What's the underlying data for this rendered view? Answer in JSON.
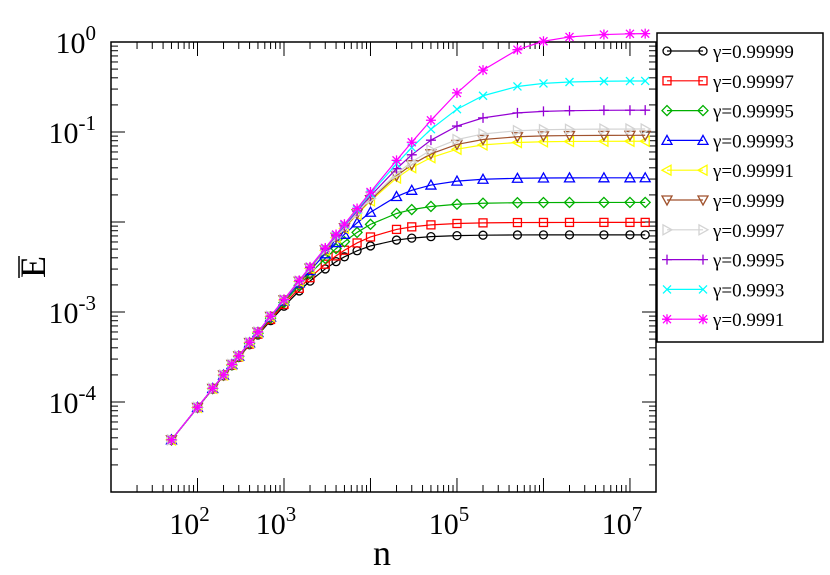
{
  "chart_data": {
    "type": "line",
    "title": "",
    "xlabel": "n",
    "ylabel": "E",
    "xscale": "log",
    "yscale": "log",
    "xlim": [
      10,
      20000000
    ],
    "ylim": [
      1e-05,
      1
    ],
    "grid": false,
    "legend_position": "right-outside",
    "x_ticks": [
      {
        "base": "10",
        "exp": "2"
      },
      {
        "base": "10",
        "exp": "3"
      },
      {
        "base": "10",
        "exp": "5"
      },
      {
        "base": "10",
        "exp": "7"
      }
    ],
    "y_ticks": [
      {
        "base": "10",
        "exp": "0"
      },
      {
        "base": "10",
        "exp": "-1"
      },
      {
        "base": "10",
        "exp": "-3"
      },
      {
        "base": "10",
        "exp": "-4"
      }
    ],
    "series": [
      {
        "name": "γ=0.99999",
        "color": "#000000",
        "marker": "circle",
        "plateau": 0.0072
      },
      {
        "name": "γ=0.99997",
        "color": "#ff0000",
        "marker": "square",
        "plateau": 0.0099
      },
      {
        "name": "γ=0.99995",
        "color": "#00b000",
        "marker": "diamond",
        "plateau": 0.0165
      },
      {
        "name": "γ=0.99993",
        "color": "#0000ff",
        "marker": "triangle-up",
        "plateau": 0.031
      },
      {
        "name": "γ=0.99991",
        "color": "#ffff00",
        "marker": "triangle-left",
        "plateau": 0.079
      },
      {
        "name": "γ=0.9999",
        "color": "#a0522d",
        "marker": "triangle-down",
        "plateau": 0.092
      },
      {
        "name": "γ=0.9997",
        "color": "#d3d3d3",
        "marker": "triangle-right",
        "plateau": 0.108
      },
      {
        "name": "γ=0.9995",
        "color": "#9400d3",
        "marker": "plus",
        "plateau": 0.175
      },
      {
        "name": "γ=0.9993",
        "color": "#00ffff",
        "marker": "x",
        "plateau": 0.37
      },
      {
        "name": "γ=0.9991",
        "color": "#ff00ff",
        "marker": "star",
        "plateau": 1.25
      }
    ],
    "x_points": [
      50,
      100,
      150,
      200,
      250,
      300,
      400,
      500,
      700,
      1000,
      1500,
      2000,
      3000,
      4000,
      5000,
      7000,
      10000,
      20000,
      30000,
      50000,
      100000,
      200000,
      500000,
      1000000,
      2000000,
      5000000,
      10000000,
      15000000
    ],
    "initial_value": 3.8e-05,
    "initial_n": 50,
    "growth_exponent": 1.2
  }
}
